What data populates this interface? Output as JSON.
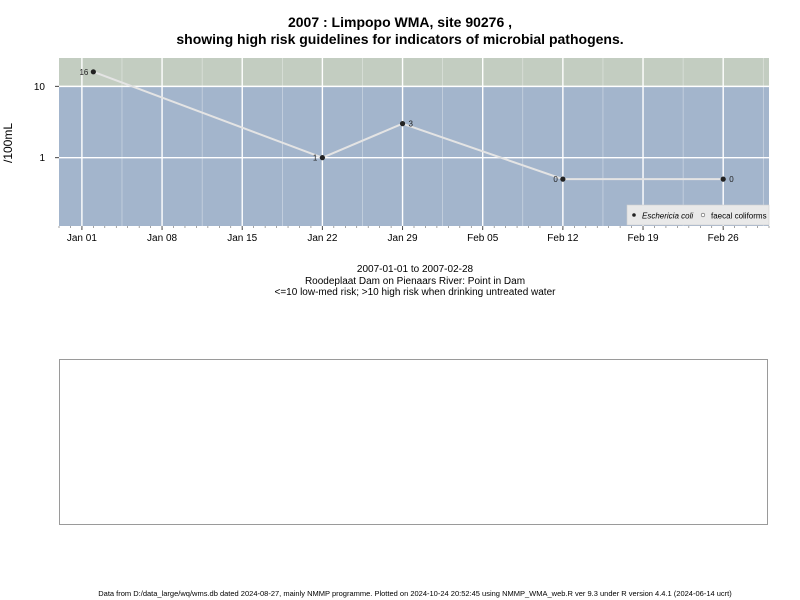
{
  "chart_data": {
    "type": "line",
    "title": "2007 : Limpopo WMA, site 90276 ,",
    "subtitle": "showing high risk guidelines for indicators of microbial pathogens.",
    "ylabel": "/100mL",
    "xlabel": "",
    "x_tick_labels": [
      "Jan 01",
      "Jan 08",
      "Jan 15",
      "Jan 22",
      "Jan 29",
      "Feb 05",
      "Feb 12",
      "Feb 19",
      "Feb 26"
    ],
    "x_ticks": [
      "2007-01-01",
      "2007-01-08",
      "2007-01-15",
      "2007-01-22",
      "2007-01-29",
      "2007-02-05",
      "2007-02-12",
      "2007-02-19",
      "2007-02-26"
    ],
    "xlim": [
      "2006-12-30",
      "2007-03-02"
    ],
    "y_scale": "log",
    "y_ticks": [
      1,
      10
    ],
    "y_tick_labels": [
      "1",
      "10"
    ],
    "ylim": [
      0.11,
      25
    ],
    "high_risk_threshold": 10,
    "grid": true,
    "colors": {
      "panel_low_risk": "#a3b5cc",
      "panel_high_risk": "#c3cdc1",
      "grid": "#ffffff",
      "line": "#e4e4e4",
      "point": "#222222"
    },
    "series": [
      {
        "name": "Eschericia coli",
        "x": [
          "2007-01-02",
          "2007-01-22",
          "2007-01-29",
          "2007-02-12",
          "2007-02-26"
        ],
        "values": [
          16,
          1,
          3,
          0.5,
          0.5
        ],
        "labels": [
          "16",
          "1",
          "3",
          "0",
          "0"
        ]
      }
    ],
    "legend": {
      "placement": "bottom-right",
      "entries": [
        "Eschericia coli",
        "faecal coliforms"
      ]
    }
  },
  "info": {
    "date_range": "2007-01-01 to 2007-02-28",
    "location": "Roodeplaat Dam on Pienaars River: Point in Dam",
    "risk_note": "<=10 low-med risk; >10 high risk when drinking untreated water"
  },
  "footer": "Data from D:/data_large/wq/wms.db dated 2024-08-27, mainly NMMP programme. Plotted on 2024-10-24 20:52:45 using NMMP_WMA_web.R ver 9.3 under R version 4.4.1 (2024-06-14 ucrt)"
}
